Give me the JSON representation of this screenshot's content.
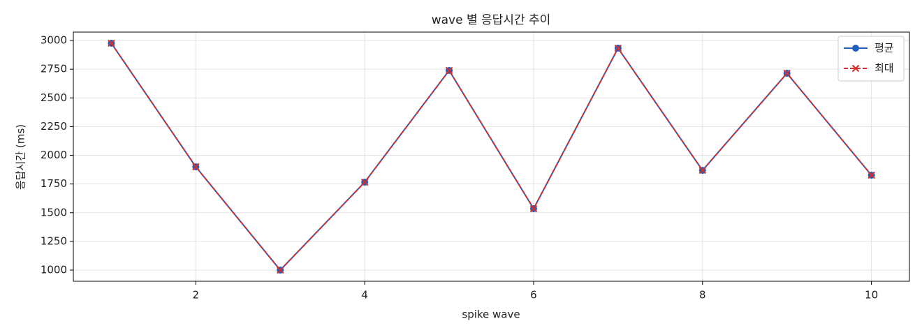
{
  "chart_data": {
    "type": "line",
    "title": "wave 별 응답시간 추이",
    "xlabel": "spike wave",
    "ylabel": "응답시간 (ms)",
    "x": [
      1,
      2,
      3,
      4,
      5,
      6,
      7,
      8,
      9,
      10
    ],
    "series": [
      {
        "name": "평균",
        "color": "#1f5fbf",
        "marker": "circle",
        "dash": "solid",
        "values": [
          2976,
          1900,
          1000,
          1766,
          2739,
          1535,
          2933,
          1869,
          2714,
          1827
        ]
      },
      {
        "name": "최대",
        "color": "#d32f2f",
        "marker": "x",
        "dash": "dashed",
        "values": [
          2976,
          1900,
          1000,
          1766,
          2739,
          1535,
          2933,
          1869,
          2714,
          1827
        ]
      }
    ],
    "xlim": [
      0.55,
      10.45
    ],
    "xticks": [
      2,
      4,
      6,
      8,
      10
    ],
    "ylim": [
      903,
      3073
    ],
    "yticks": [
      1000,
      1250,
      1500,
      1750,
      2000,
      2250,
      2500,
      2750,
      3000
    ],
    "grid": true,
    "legend": "upper right"
  }
}
